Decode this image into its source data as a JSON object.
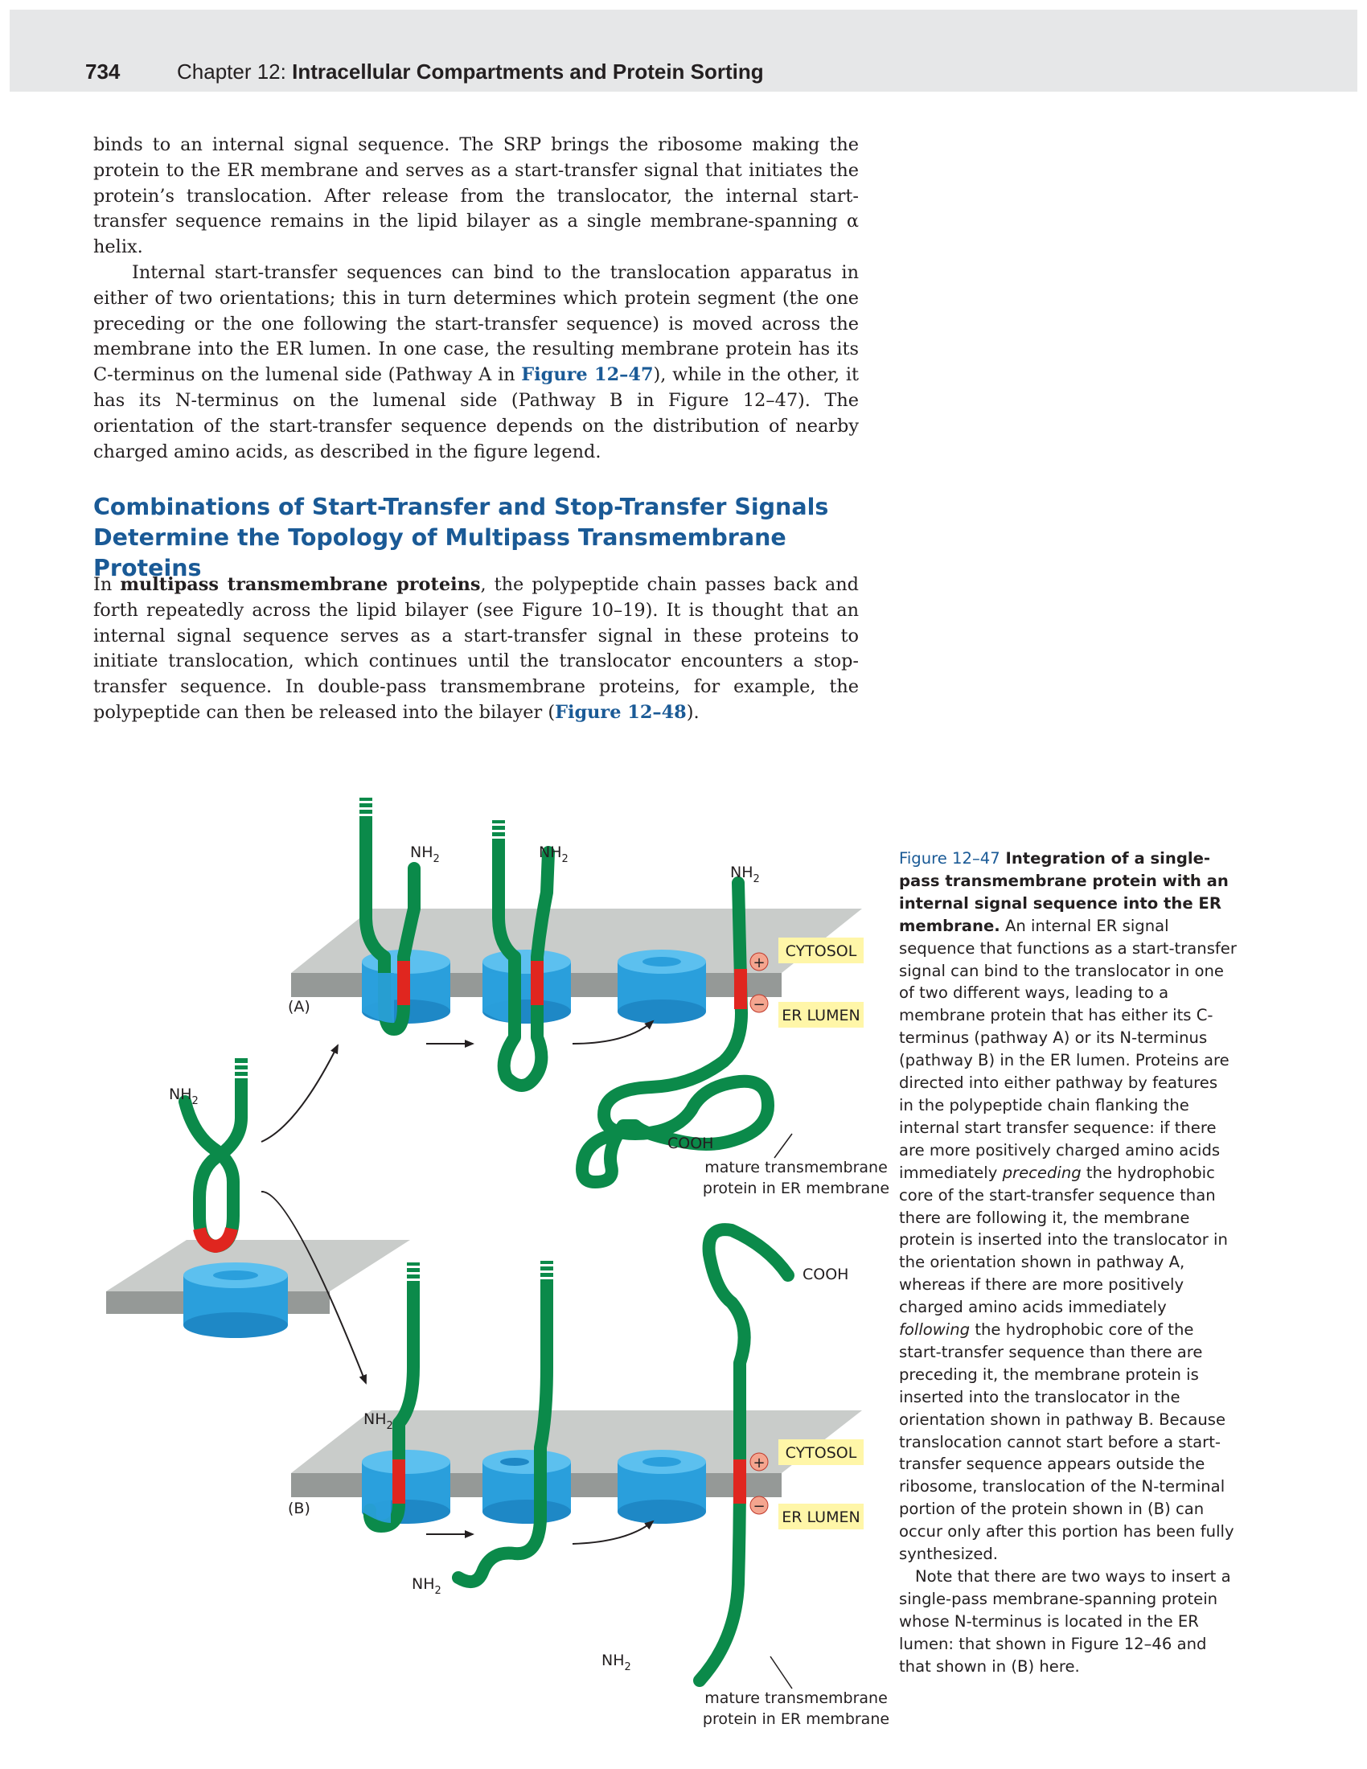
{
  "header": {
    "page_number": "734",
    "chapter_prefix": "Chapter 12: ",
    "chapter_title": "Intracellular Compartments and Protein Sorting"
  },
  "body": {
    "p1": "binds to an internal signal sequence. The SRP brings the ribosome making the protein to the ER membrane and serves as a start-transfer signal that initiates the protein’s translocation. After release from the translocator, the internal start-transfer sequence remains in the lipid bilayer as a single membrane-spanning α helix.",
    "p2_a": "Internal start-transfer sequences can bind to the translocation apparatus in either of two orientations; this in turn determines which protein segment (the one preceding or the one following the start-transfer sequence) is moved across the membrane into the ER lumen. In one case, the resulting membrane protein has its C-terminus on the lumenal side (Pathway A in ",
    "p2_ref": "Figure 12–47",
    "p2_b": "), while in the other, it has its N-terminus on the lumenal side (Pathway B in Figure 12–47). The orientation of the start-transfer sequence depends on the distribution of nearby charged amino acids, as described in the figure legend.",
    "heading_line1": "Combinations of Start-Transfer and Stop-Transfer Signals",
    "heading_line2": "Determine the Topology of Multipass Transmembrane Proteins",
    "p3_a": "In ",
    "p3_bold": "multipass transmembrane proteins",
    "p3_b": ", the polypeptide chain passes back and forth repeatedly across the lipid bilayer (see Figure 10–19). It is thought that an internal signal sequence serves as a start-transfer signal in these proteins to initiate translocation, which continues until the translocator encounters a stop-transfer sequence. In double-pass transmembrane proteins, for example, the polypeptide can then be released into the bilayer (",
    "p3_ref": "Figure 12–48",
    "p3_c": ")."
  },
  "figure": {
    "labels": {
      "pathway_a": "(A)",
      "pathway_b": "(B)",
      "nh2": "NH",
      "subscript_2": "2",
      "cooh": "COOH",
      "cytosol": "CYTOSOL",
      "er_lumen": "ER LUMEN",
      "plus": "+",
      "minus": "−",
      "mature_line1": "mature transmembrane",
      "mature_line2": "protein in ER membrane"
    },
    "colors": {
      "chain_green": "#0b8a4a",
      "chain_dark": "#067038",
      "start_transfer_red": "#e0261f",
      "translocator_blue": "#2a9fdc",
      "membrane_top": "#c9ccca",
      "membrane_side": "#959997",
      "label_box": "#fff6a8",
      "charge_circle": "#f4a58f"
    }
  },
  "caption": {
    "label": "Figure 12–47",
    "title": " Integration of a single-pass transmembrane protein with an internal signal sequence into the ER membrane.",
    "text1": " An internal ER signal sequence that functions as a start-transfer signal can bind to the translocator in one of two different ways, leading to a membrane protein that has either its C-terminus (pathway A) or its N-terminus (pathway B) in the ER lumen. Proteins are directed into either pathway by features in the polypeptide chain flanking the internal start transfer sequence: if there are more positively charged amino acids immediately ",
    "preceding": "preceding",
    "text2": " the hydrophobic core of the start-transfer sequence than there are following it, the membrane protein is inserted into the translocator in the orientation shown in pathway A, whereas if there are more positively charged amino acids immediately ",
    "following": "following",
    "text3": " the hydrophobic core of the start-transfer sequence than there are preceding it, the membrane protein is inserted into the translocator in the orientation shown in pathway B. Because translocation cannot start before a start-transfer sequence appears outside the ribosome, translocation of the N-terminal portion of the protein shown in (B) can occur only after this portion has been fully synthesized.",
    "note": "Note that there are two ways to insert a single-pass membrane-spanning protein whose N-terminus is located in the ER lumen: that shown in Figure 12–46 and that shown in (B) here."
  }
}
